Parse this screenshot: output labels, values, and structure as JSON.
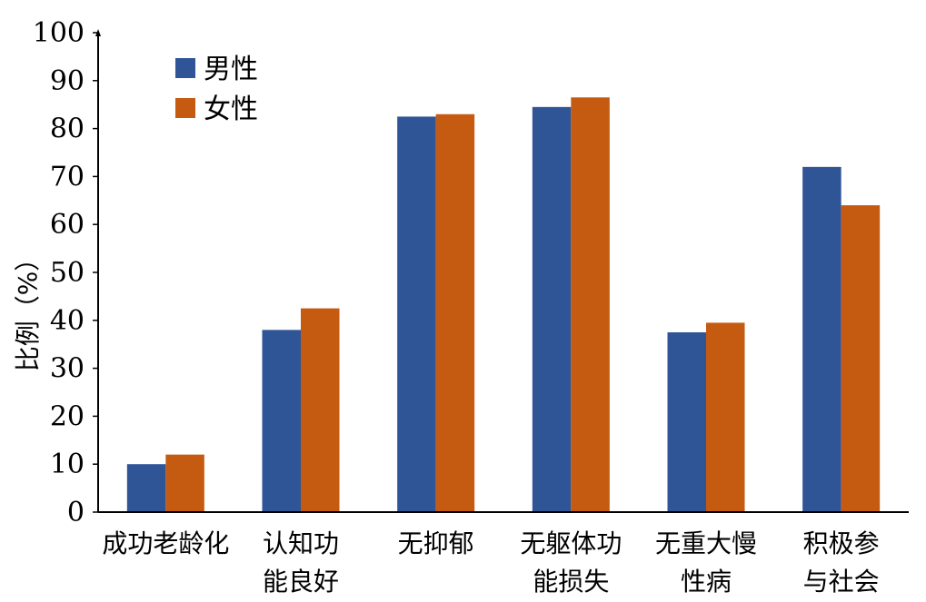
{
  "chart_data": {
    "type": "bar",
    "title": "",
    "xlabel": "",
    "ylabel": "比例（%）",
    "ylim": [
      0,
      100
    ],
    "yticks": [
      0,
      10,
      20,
      30,
      40,
      50,
      60,
      70,
      80,
      90,
      100
    ],
    "categories": [
      [
        "成功老龄化"
      ],
      [
        "认知功",
        "能良好"
      ],
      [
        "无抑郁"
      ],
      [
        "无躯体功",
        "能损失"
      ],
      [
        "无重大慢",
        "性病"
      ],
      [
        "积极参",
        "与社会"
      ]
    ],
    "series": [
      {
        "name": "男性",
        "color": "#2f5597",
        "values": [
          10,
          38,
          82.5,
          84.5,
          37.5,
          72
        ]
      },
      {
        "name": "女性",
        "color": "#c55a11",
        "values": [
          12,
          42.5,
          83,
          86.5,
          39.5,
          64
        ]
      }
    ],
    "legend": {
      "position": "top-left"
    },
    "grid": false
  }
}
